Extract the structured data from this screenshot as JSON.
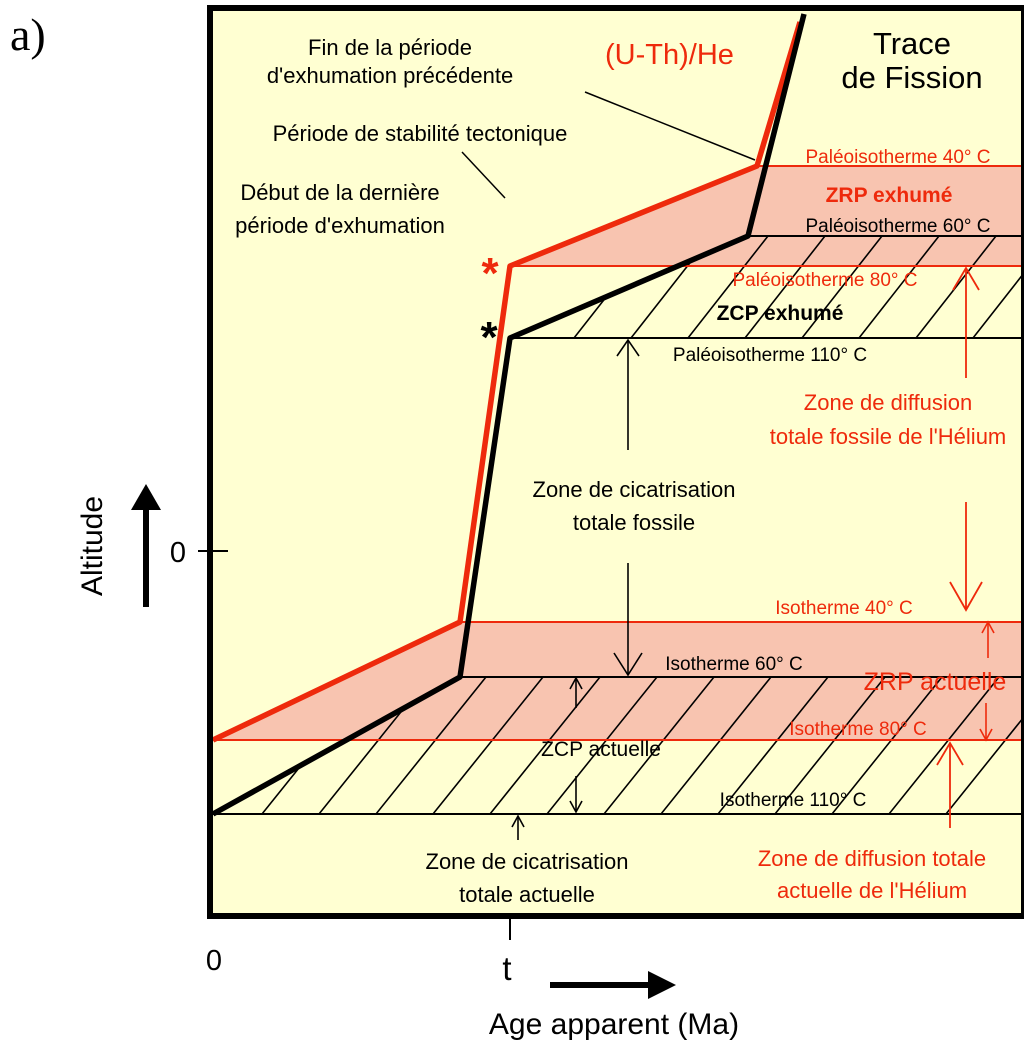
{
  "panel_label": "a)",
  "curves": {
    "uthhe": "(U-Th)/He",
    "ft_line1": "Trace",
    "ft_line2": "de Fission"
  },
  "annotations": {
    "fin_line1": "Fin de la période",
    "fin_line2": "d'exhumation précédente",
    "stabilite": "Période de stabilité tectonique",
    "debut_line1": "Début de la dernière",
    "debut_line2": "période d'exhumation",
    "star": "*"
  },
  "isotherms": {
    "paleo40": "Paléoisotherme 40° C",
    "zrp_exhume": "ZRP exhumé",
    "paleo60": "Paléoisotherme 60° C",
    "paleo80": "Paléoisotherme 80° C",
    "zcp_exhume": "ZCP exhumé",
    "paleo110": "Paléoisotherme 110° C",
    "iso40": "Isotherme 40° C",
    "iso60": "Isotherme 60° C",
    "zrp_actuelle": "ZRP actuelle",
    "iso80": "Isotherme 80° C",
    "zcp_actuelle": "ZCP actuelle",
    "iso110": "Isotherme 110° C"
  },
  "zones": {
    "diff_fossil_line1": "Zone de diffusion",
    "diff_fossil_line2": "totale fossile de l'Hélium",
    "cica_fossil_line1": "Zone de cicatrisation",
    "cica_fossil_line2": "totale fossile",
    "cica_actual_line1": "Zone de cicatrisation",
    "cica_actual_line2": "totale actuelle",
    "diff_actual_line1": "Zone de diffusion totale",
    "diff_actual_line2": "actuelle de l'Hélium"
  },
  "axes": {
    "y_label": "Altitude",
    "y_zero": "0",
    "x_zero": "0",
    "x_t": "t",
    "x_label": "Age apparent  (Ma)"
  },
  "colors": {
    "background": "#ffffd2",
    "zrp_fill": "#f8c4b0",
    "red": "#ee2a0c",
    "black": "#000000"
  }
}
